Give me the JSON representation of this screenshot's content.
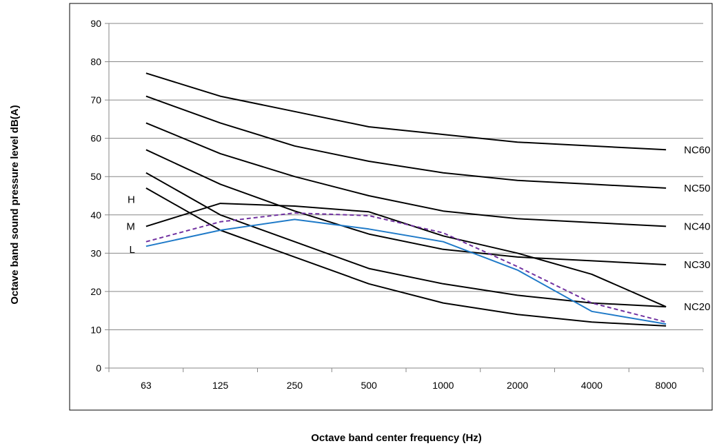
{
  "chart_data": {
    "type": "line",
    "title": "",
    "xlabel": "Octave band center frequency (Hz)",
    "ylabel": "Octave band sound pressure level dB(A)",
    "categories": [
      "63",
      "125",
      "250",
      "500",
      "1000",
      "2000",
      "4000",
      "8000"
    ],
    "ylim": [
      0,
      90
    ],
    "yticks": [
      "0",
      "10",
      "20",
      "30",
      "40",
      "50",
      "60",
      "70",
      "80",
      "90"
    ],
    "grid": true,
    "series": [
      {
        "name": "NC60",
        "color": "#000000",
        "style": "solid",
        "values": [
          77,
          71,
          67,
          63,
          61,
          59,
          58,
          57
        ]
      },
      {
        "name": "NC50",
        "color": "#000000",
        "style": "solid",
        "values": [
          71,
          64,
          58,
          54,
          51,
          49,
          48,
          47
        ]
      },
      {
        "name": "NC40",
        "color": "#000000",
        "style": "solid",
        "values": [
          64,
          56,
          50,
          45,
          41,
          39,
          38,
          37
        ]
      },
      {
        "name": "NC30",
        "color": "#000000",
        "style": "solid",
        "values": [
          57,
          48,
          41,
          35,
          31,
          29,
          28,
          27
        ]
      },
      {
        "name": "NC20",
        "color": "#000000",
        "style": "solid",
        "values": [
          51,
          40,
          33,
          26,
          22,
          19,
          17,
          16
        ]
      },
      {
        "name": "",
        "color": "#000000",
        "style": "solid",
        "values": [
          47,
          36,
          29,
          22,
          17,
          14,
          12,
          11
        ]
      },
      {
        "name": "H",
        "color": "#000000",
        "style": "solid",
        "values": [
          37,
          43,
          42.3,
          40.8,
          34.5,
          30,
          24.5,
          16
        ]
      },
      {
        "name": "M",
        "color": "#7030a0",
        "style": "dashed",
        "values": [
          33,
          38.2,
          40.5,
          39.8,
          35.3,
          26.5,
          17,
          12
        ]
      },
      {
        "name": "L",
        "color": "#1f7ac8",
        "style": "solid",
        "values": [
          31.8,
          36,
          38.8,
          36.3,
          33,
          25.6,
          14.8,
          11.5
        ]
      }
    ]
  }
}
